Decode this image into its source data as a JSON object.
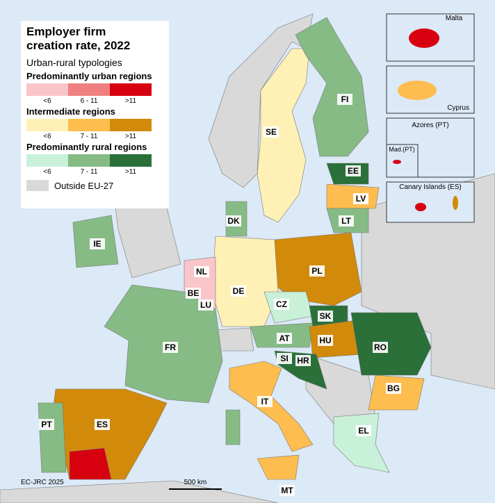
{
  "title": "Employer firm creation rate, 2022",
  "subtitle": "Urban-rural typologies",
  "legend": {
    "groups": [
      {
        "title": "Predominantly urban regions",
        "items": [
          {
            "label": "<6",
            "color": "#f9c5c8"
          },
          {
            "label": "6 - 11",
            "color": "#f08080"
          },
          {
            "label": ">11",
            "color": "#d7000f"
          }
        ]
      },
      {
        "title": "Intermediate regions",
        "items": [
          {
            "label": "<6",
            "color": "#fff1b5"
          },
          {
            "label": "7 - 11",
            "color": "#fdbd4f"
          },
          {
            "label": ">11",
            "color": "#d28a0a"
          }
        ]
      },
      {
        "title": "Predominantly rural regions",
        "items": [
          {
            "label": "<6",
            "color": "#c9f1d9"
          },
          {
            "label": "7 - 11",
            "color": "#86bb86"
          },
          {
            "label": ">11",
            "color": "#2a7038"
          }
        ]
      }
    ],
    "outside": {
      "label": "Outside EU-27",
      "color": "#d9d9d9"
    }
  },
  "country_labels": [
    "SE",
    "FI",
    "EE",
    "LV",
    "LT",
    "DK",
    "IE",
    "NL",
    "DE",
    "PL",
    "BE",
    "LU",
    "CZ",
    "SK",
    "FR",
    "AT",
    "HU",
    "RO",
    "SI",
    "HR",
    "BG",
    "IT",
    "PT",
    "ES",
    "EL",
    "MT"
  ],
  "insets": [
    "Malta",
    "Cyprus",
    "Azores (PT)",
    "Mad.(PT)",
    "Canary Islands (ES)"
  ],
  "credit": "EC-JRC 2025",
  "scale_bar": "500 km"
}
